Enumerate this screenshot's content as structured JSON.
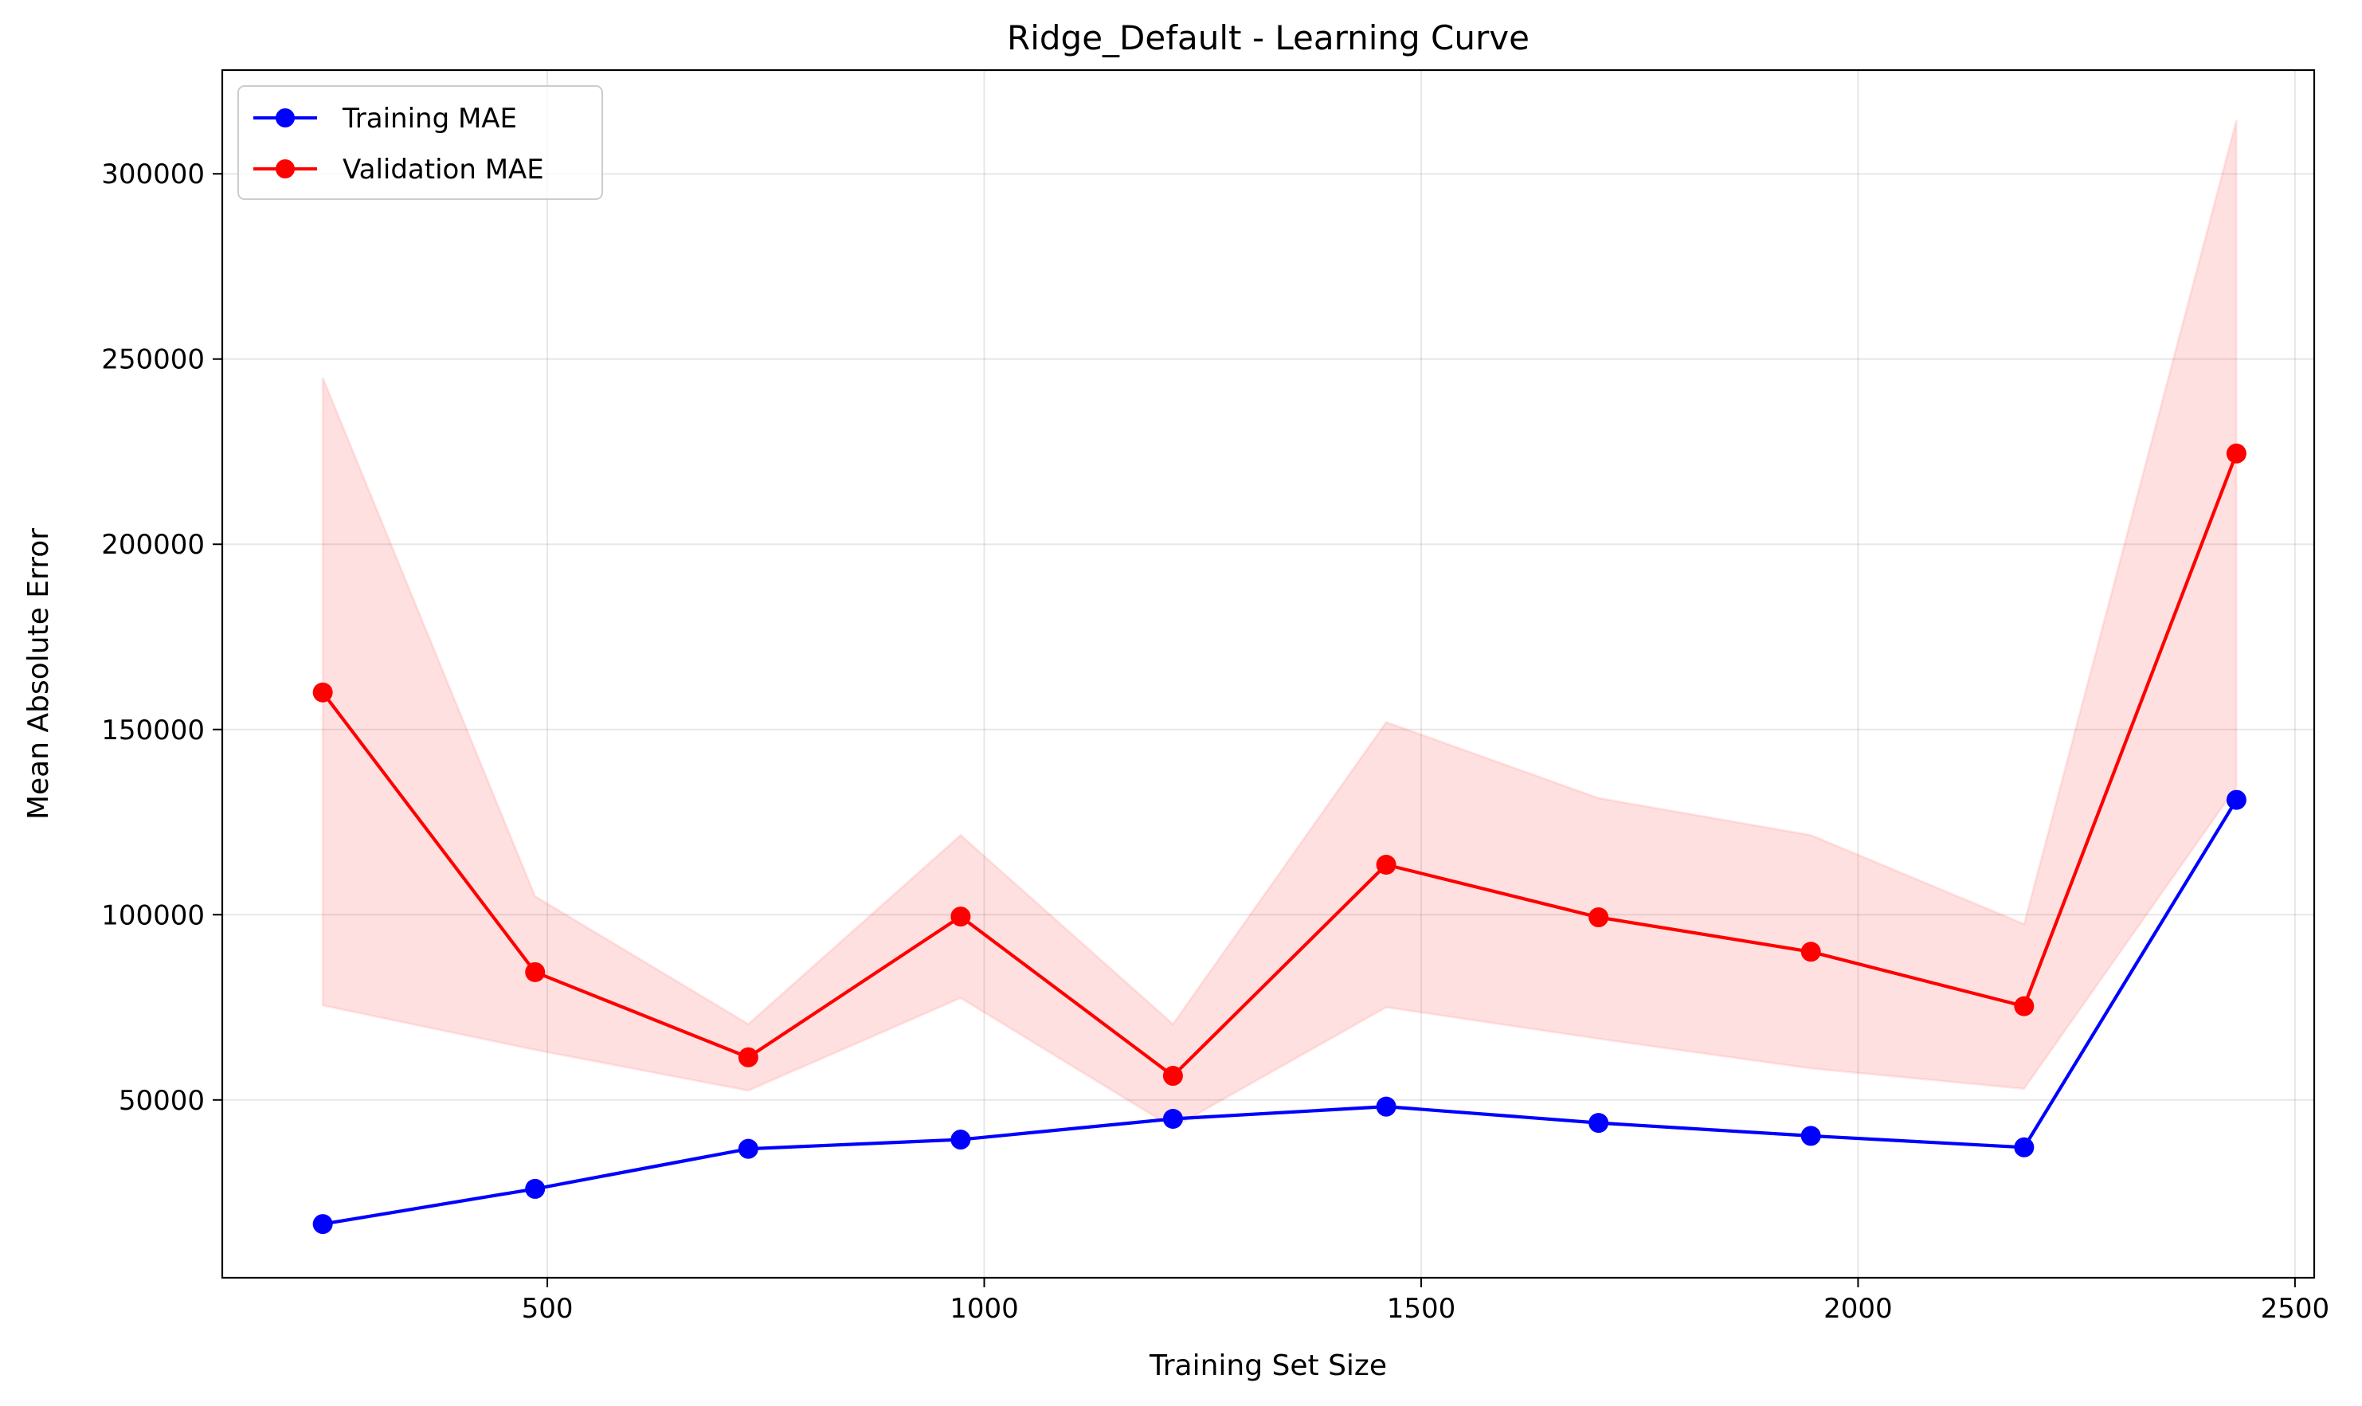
{
  "chart_data": {
    "type": "line",
    "title": "Ridge_Default - Learning Curve",
    "xlabel": "Training Set Size",
    "ylabel": "Mean Absolute Error",
    "xlim": [
      128,
      2522
    ],
    "ylim": [
      2000,
      328000
    ],
    "xticks": [
      500,
      1000,
      1500,
      2000,
      2500
    ],
    "yticks": [
      50000,
      100000,
      150000,
      200000,
      250000,
      300000
    ],
    "grid": true,
    "legend_position": "top-left",
    "x": [
      243,
      486,
      730,
      973,
      1216,
      1460,
      1703,
      1946,
      2190,
      2433
    ],
    "series": [
      {
        "name": "Training MAE",
        "color": "#0000ff",
        "marker": "circle",
        "values": [
          16500,
          26000,
          36800,
          39300,
          44900,
          48200,
          43800,
          40300,
          37200,
          131000
        ]
      },
      {
        "name": "Validation MAE",
        "color": "#ff0000",
        "marker": "circle",
        "values": [
          160000,
          84500,
          61500,
          99500,
          56500,
          113500,
          99300,
          90000,
          75300,
          224500
        ],
        "band": {
          "color": "#ff0000",
          "opacity": 0.12,
          "lower": [
            75500,
            63500,
            52500,
            77500,
            42500,
            75000,
            66500,
            58500,
            53000,
            134500
          ],
          "upper": [
            245000,
            105000,
            70500,
            121500,
            70500,
            152000,
            131500,
            121500,
            97500,
            314500
          ]
        }
      }
    ]
  }
}
